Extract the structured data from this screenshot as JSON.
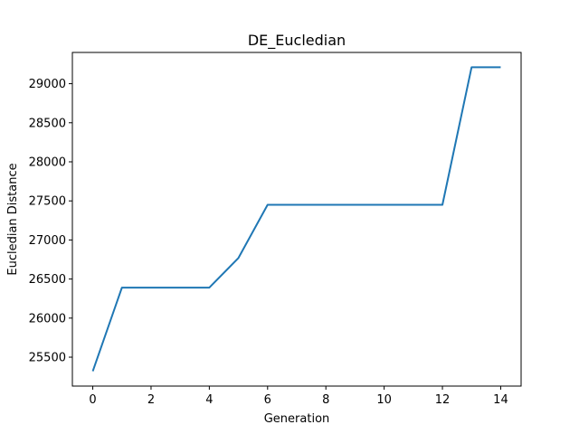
{
  "chart_data": {
    "type": "line",
    "title": "DE_Eucledian",
    "xlabel": "Generation",
    "ylabel": "Eucledian Distance",
    "xlim": [
      -0.7,
      14.7
    ],
    "ylim": [
      25130,
      29400
    ],
    "xticks": [
      0,
      2,
      4,
      6,
      8,
      10,
      12,
      14
    ],
    "yticks": [
      25500,
      26000,
      26500,
      27000,
      27500,
      28000,
      28500,
      29000
    ],
    "grid": false,
    "series": [
      {
        "color": "#1f77b4",
        "x": [
          0,
          1,
          2,
          3,
          4,
          5,
          6,
          7,
          8,
          9,
          10,
          11,
          12,
          13,
          14
        ],
        "y": [
          25320,
          26390,
          26390,
          26390,
          26390,
          26770,
          27450,
          27450,
          27450,
          27450,
          27450,
          27450,
          27450,
          29210,
          29210
        ]
      }
    ]
  }
}
